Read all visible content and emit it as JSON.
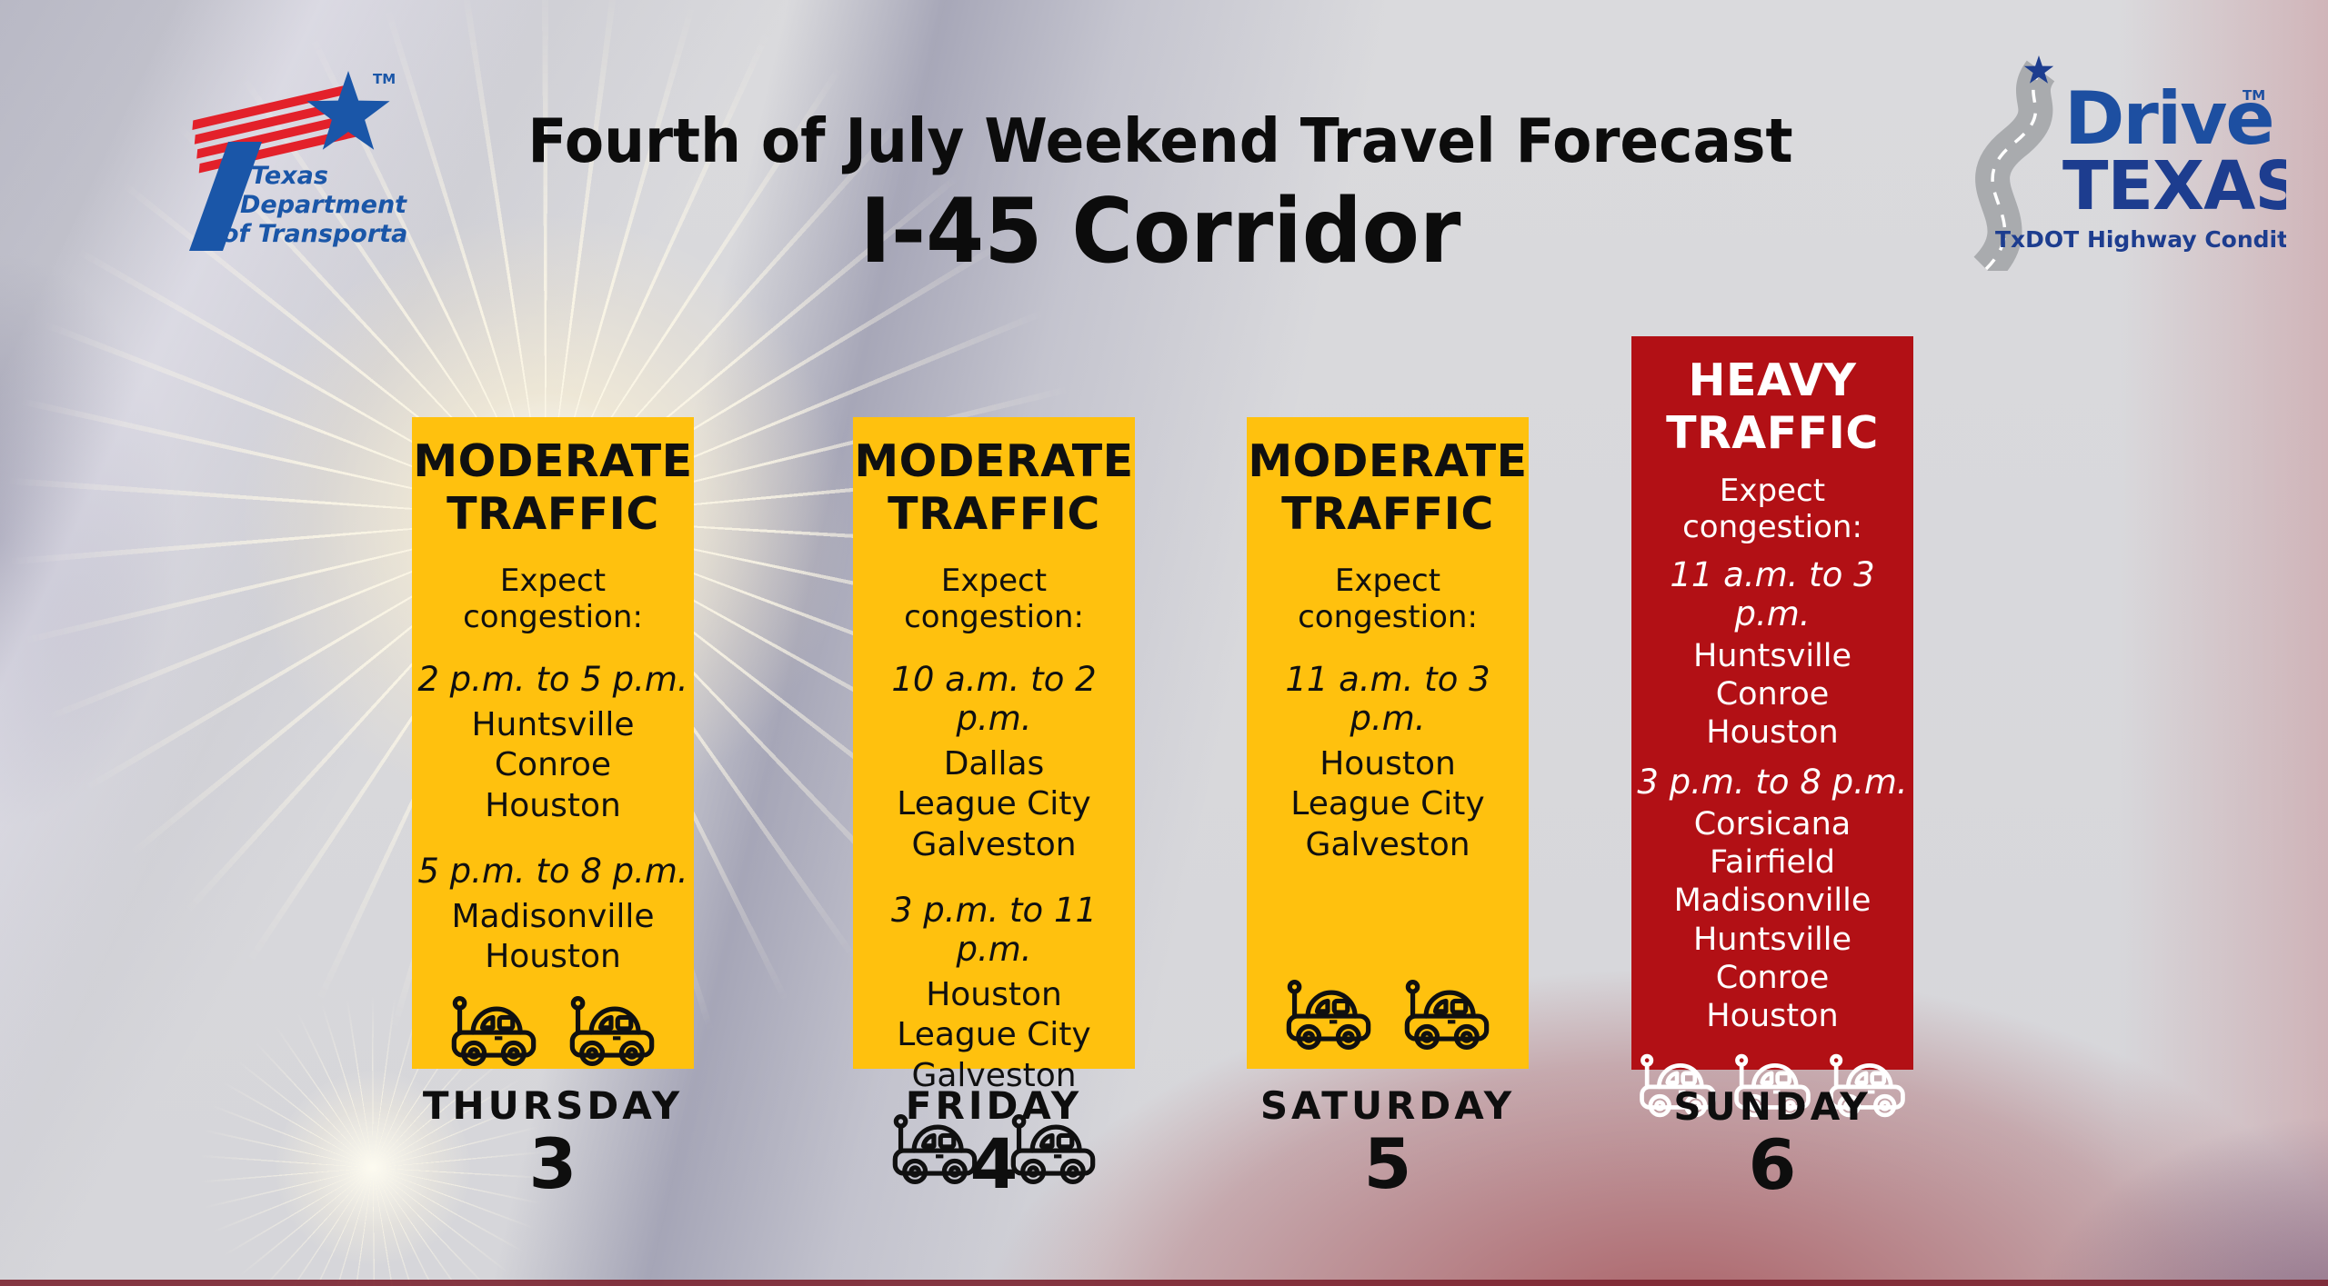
{
  "header": {
    "title_line1": "Fourth of July Weekend Travel Forecast",
    "title_line2": "I-45 Corridor"
  },
  "txdot_logo": {
    "line1": "Texas",
    "line2": "Department",
    "line3": "of Transportation",
    "trademark": "TM",
    "icon": "txdot-flag-star-icon"
  },
  "drivetexas_logo": {
    "drive": "Drive",
    "texas": "TEXAS",
    "trademark": "TM",
    "tagline": "TxDOT Highway Conditions",
    "icon": "winding-road-star-icon"
  },
  "columns": [
    {
      "theme": "moderate",
      "severity": [
        "MODERATE",
        "TRAFFIC"
      ],
      "congestion_label": "Expect congestion:",
      "periods": [
        {
          "time": "2 p.m. to 5 p.m.",
          "cities": [
            "Huntsville",
            "Conroe",
            "Houston"
          ]
        },
        {
          "time": "5 p.m. to 8 p.m.",
          "cities": [
            "Madisonville",
            "Houston"
          ]
        }
      ],
      "car_count": 2,
      "car_icon": "toy-car",
      "day": {
        "name": "THURSDAY",
        "number": "3"
      }
    },
    {
      "theme": "moderate",
      "severity": [
        "MODERATE",
        "TRAFFIC"
      ],
      "congestion_label": "Expect congestion:",
      "periods": [
        {
          "time": "10 a.m. to 2 p.m.",
          "cities": [
            "Dallas",
            "League City",
            "Galveston"
          ]
        },
        {
          "time": "3 p.m. to 11 p.m.",
          "cities": [
            "Houston",
            "League City",
            "Galveston"
          ]
        }
      ],
      "car_count": 2,
      "car_icon": "toy-car",
      "day": {
        "name": "FRIDAY",
        "number": "4"
      }
    },
    {
      "theme": "moderate",
      "severity": [
        "MODERATE",
        "TRAFFIC"
      ],
      "congestion_label": "Expect congestion:",
      "periods": [
        {
          "time": "11 a.m. to 3 p.m.",
          "cities": [
            "Houston",
            "League City",
            "Galveston"
          ]
        }
      ],
      "car_count": 2,
      "car_icon": "toy-car",
      "day": {
        "name": "SATURDAY",
        "number": "5"
      }
    },
    {
      "theme": "heavy",
      "severity": [
        "HEAVY",
        "TRAFFIC"
      ],
      "congestion_label": "Expect congestion:",
      "periods": [
        {
          "time": "11 a.m. to 3 p.m.",
          "cities": [
            "Huntsville",
            "Conroe",
            "Houston"
          ]
        },
        {
          "time": "3 p.m. to 8 p.m.",
          "cities": [
            "Corsicana",
            "Fairfield",
            "Madisonville",
            "Huntsville",
            "Conroe",
            "Houston"
          ]
        }
      ],
      "car_count": 3,
      "car_icon": "toy-car",
      "day": {
        "name": "SUNDAY",
        "number": "6"
      }
    }
  ],
  "colors": {
    "moderate_bg": "#ffc10e",
    "heavy_bg": "#b21015",
    "moderate_text": "#101010",
    "heavy_text": "#ffffff",
    "txdot_blue": "#1a56a8",
    "logo_stripe_red": "#e3212a",
    "drivetexas_navy": "#1d3d8f",
    "drivetexas_blue": "#1d4fa1",
    "road_gray": "#a9abae"
  }
}
